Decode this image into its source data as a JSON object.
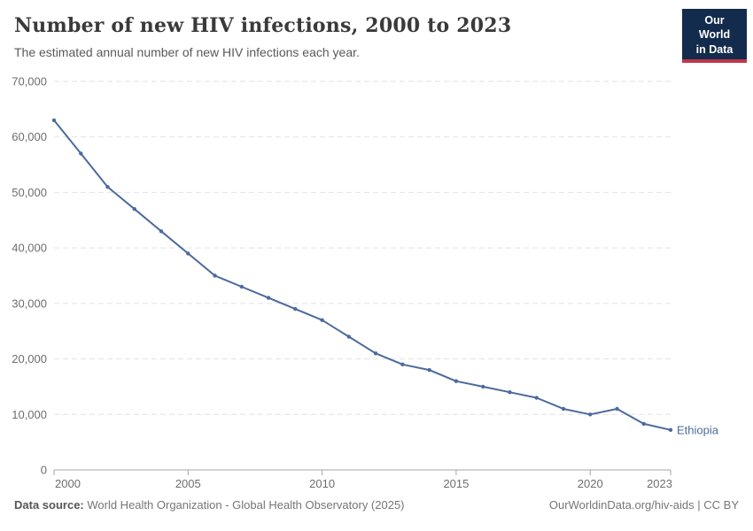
{
  "header": {
    "title": "Number of new HIV infections, 2000 to 2023",
    "subtitle": "The estimated annual number of new HIV infections each year.",
    "logo": {
      "line1": "Our World",
      "line2": "in Data",
      "bg_color": "#132c4d",
      "accent_color": "#c0364a"
    }
  },
  "chart_data": {
    "type": "line",
    "title": "Number of new HIV infections, 2000 to 2023",
    "entity": "Ethiopia",
    "xlabel": "",
    "ylabel": "",
    "x": [
      2000,
      2001,
      2002,
      2003,
      2004,
      2005,
      2006,
      2007,
      2008,
      2009,
      2010,
      2011,
      2012,
      2013,
      2014,
      2015,
      2016,
      2017,
      2018,
      2019,
      2020,
      2021,
      2022,
      2023
    ],
    "values": [
      63000,
      57000,
      51000,
      47000,
      43000,
      39000,
      35000,
      33000,
      31000,
      29000,
      27000,
      24000,
      21000,
      19000,
      18000,
      16000,
      15000,
      14000,
      13000,
      11000,
      10000,
      11000,
      8300,
      7200
    ],
    "xlim": [
      2000,
      2023
    ],
    "ylim": [
      0,
      70000
    ],
    "yticks": [
      0,
      10000,
      20000,
      30000,
      40000,
      50000,
      60000,
      70000
    ],
    "ytick_labels": [
      "0",
      "10,000",
      "20,000",
      "30,000",
      "40,000",
      "50,000",
      "60,000",
      "70,000"
    ],
    "xticks": [
      2000,
      2005,
      2010,
      2015,
      2020,
      2023
    ],
    "grid": "horizontal-dashed",
    "legend_position": "end-of-line",
    "line_color": "#4C6A9C",
    "gridline_color": "#e2e2e2",
    "axis_color": "#a6a6a6",
    "tick_label_color": "#6e6e6e"
  },
  "footer": {
    "source_label": "Data source:",
    "source_text": " World Health Organization - Global Health Observatory (2025)",
    "link_text": "OurWorldinData.org/hiv-aids | CC BY"
  }
}
